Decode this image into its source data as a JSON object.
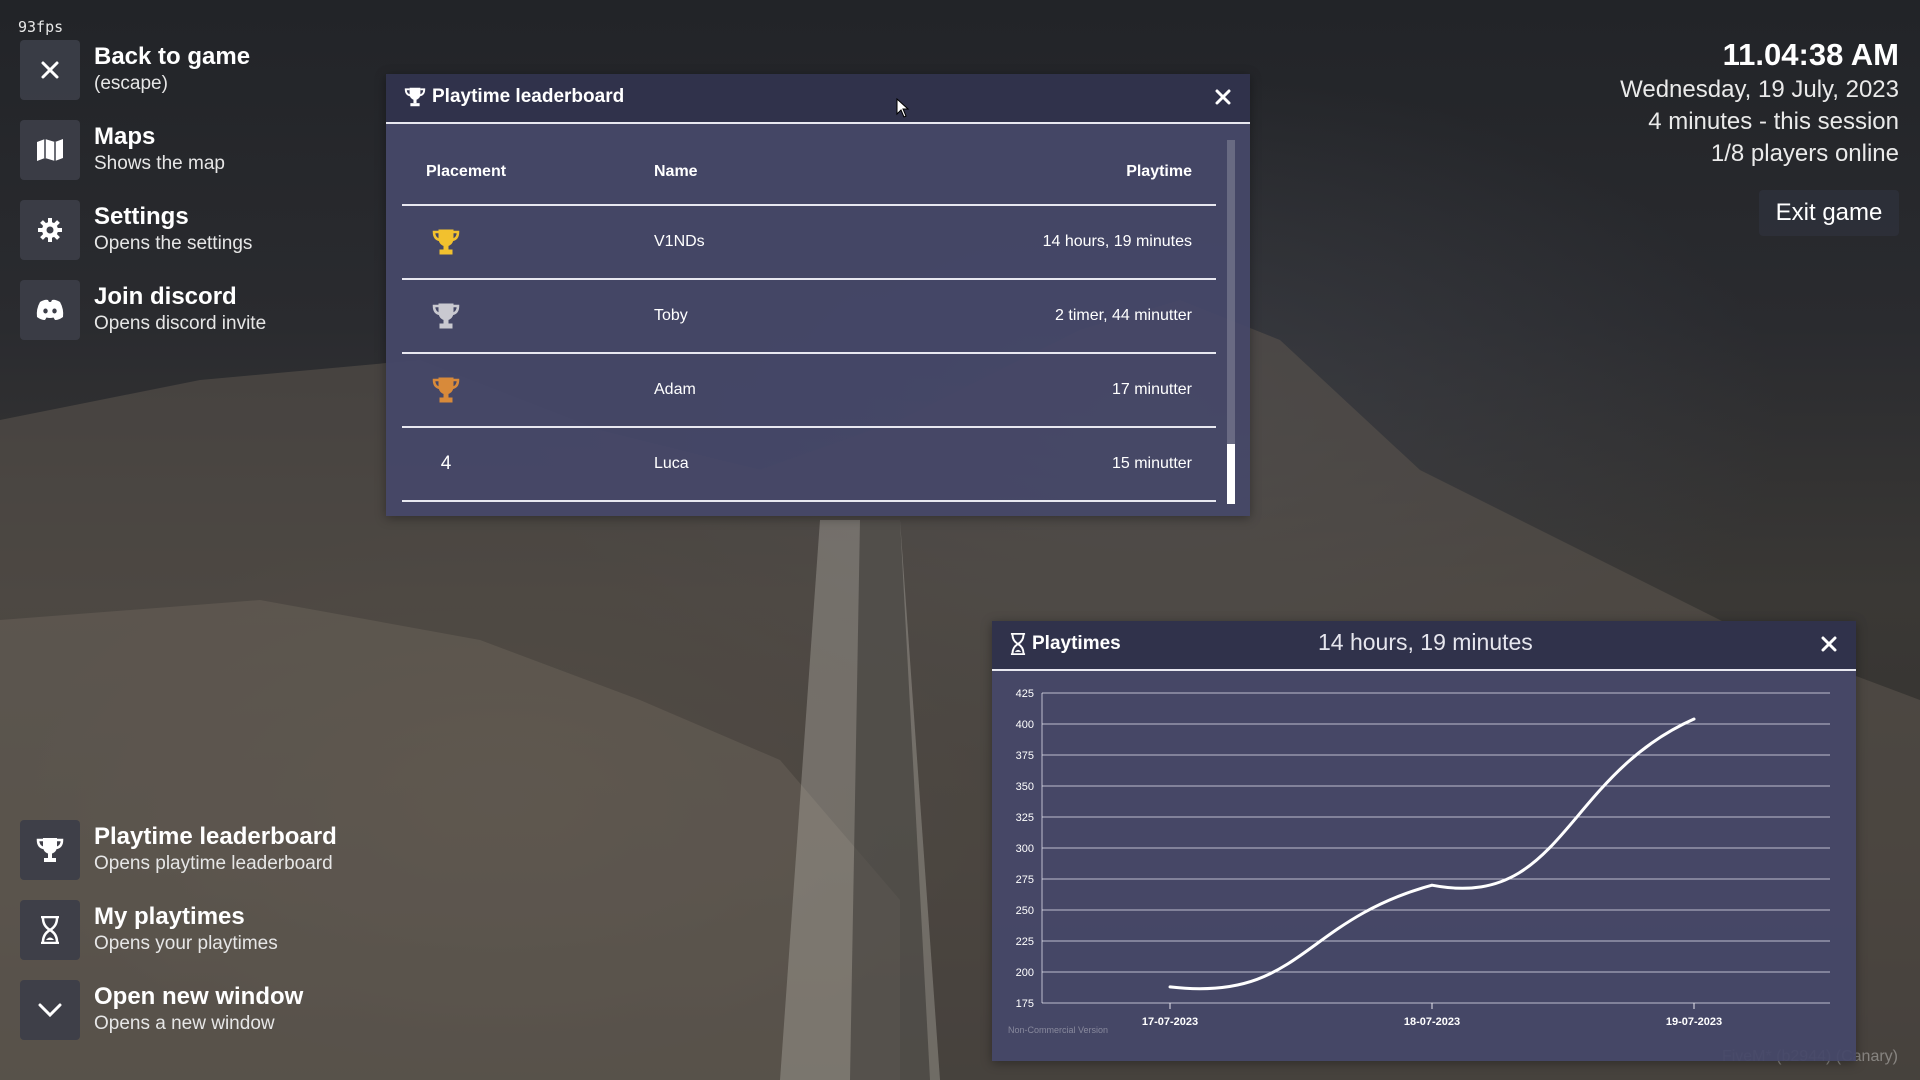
{
  "fps": "93fps",
  "menu": {
    "top": [
      {
        "title": "Back to game",
        "subtitle": "(escape)",
        "icon": "close-icon"
      },
      {
        "title": "Maps",
        "subtitle": "Shows the map",
        "icon": "map-icon"
      },
      {
        "title": "Settings",
        "subtitle": "Opens the settings",
        "icon": "gear-icon"
      },
      {
        "title": "Join discord",
        "subtitle": "Opens discord invite",
        "icon": "discord-icon"
      }
    ],
    "bottom": [
      {
        "title": "Playtime leaderboard",
        "subtitle": "Opens playtime leaderboard",
        "icon": "trophy-icon"
      },
      {
        "title": "My playtimes",
        "subtitle": "Opens your playtimes",
        "icon": "hourglass-icon"
      },
      {
        "title": "Open new window",
        "subtitle": "Opens a new window",
        "icon": "chevron-down-icon"
      }
    ]
  },
  "status": {
    "time": "11.04:38 AM",
    "date": "Wednesday, 19 July, 2023",
    "session": "4 minutes - this session",
    "players": "1/8 players online",
    "exit_label": "Exit game"
  },
  "leaderboard": {
    "title": "Playtime leaderboard",
    "columns": [
      "Placement",
      "Name",
      "Playtime"
    ],
    "rows": [
      {
        "placement": "1",
        "name": "V1NDs",
        "playtime": "14 hours, 19 minutes",
        "trophy_color": "#f2c12e"
      },
      {
        "placement": "2",
        "name": "Toby",
        "playtime": "2 timer, 44 minutter",
        "trophy_color": "#c9c9d0"
      },
      {
        "placement": "3",
        "name": "Adam",
        "playtime": "17 minutter",
        "trophy_color": "#d88a3a"
      },
      {
        "placement": "4",
        "name": "Luca",
        "playtime": "15 minutter"
      }
    ]
  },
  "playtimes": {
    "title": "Playtimes",
    "subtitle": "14 hours, 19 minutes"
  },
  "chart_data": {
    "type": "line",
    "x": [
      "17-07-2023",
      "18-07-2023",
      "19-07-2023"
    ],
    "categories": [
      "17-07-2023",
      "18-07-2023",
      "19-07-2023"
    ],
    "series": [
      {
        "values": [
          188,
          270,
          404
        ]
      }
    ],
    "yticks": [
      175,
      200,
      225,
      250,
      275,
      300,
      325,
      350,
      375,
      400,
      425
    ],
    "ylim": [
      175,
      425
    ],
    "grid": true,
    "footnote": "Non-Commercial Version",
    "line_color": "#ffffff"
  },
  "watermark": "FiveM* (b2944) (Canary)",
  "colors": {
    "window_bg": "#46486a",
    "header_bg": "#30324a",
    "menu_icon_bg": "#3c3e48"
  }
}
